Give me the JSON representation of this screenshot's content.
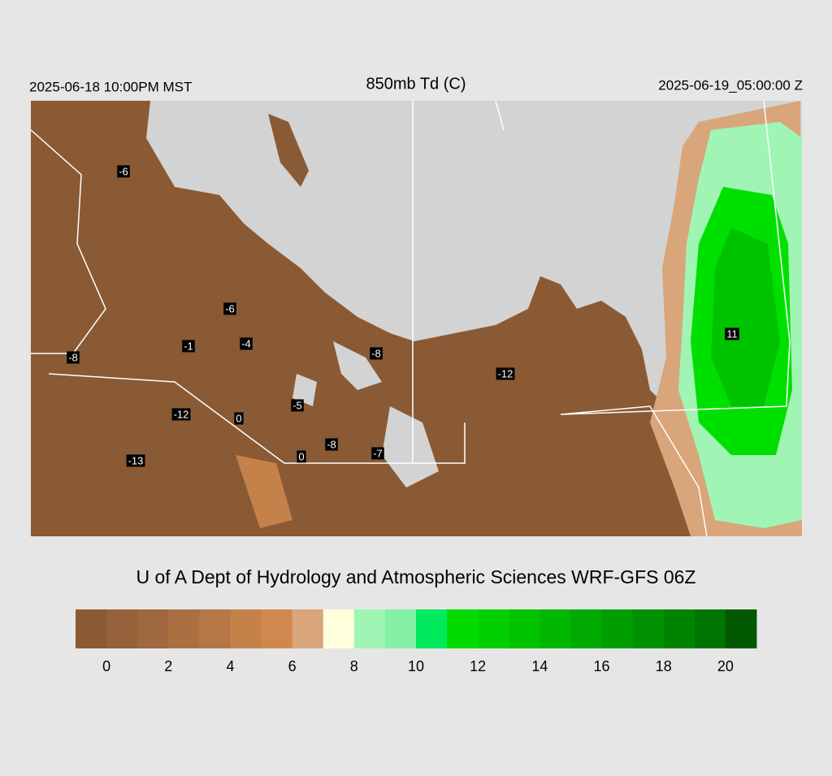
{
  "header": {
    "valid_local": "2025-06-18 10:00PM MST",
    "title": "850mb Td (C)",
    "valid_utc": "2025-06-19_05:00:00 Z"
  },
  "map": {
    "labels": [
      "-6",
      "-6",
      "-1",
      "-4",
      "-8",
      "-8",
      "-12",
      "0",
      "-5",
      "-8",
      "-7",
      "0",
      "-13",
      "-12",
      "11"
    ]
  },
  "credit": "U of A Dept of Hydrology and Atmospheric Sciences WRF-GFS 06Z",
  "colorbar": {
    "colors": [
      "#8a5a34",
      "#95613a",
      "#a0683e",
      "#ab7042",
      "#b67746",
      "#c4824a",
      "#d1884e",
      "#d8a67a",
      "#ffffdc",
      "#a0f5b4",
      "#84f0a4",
      "#00ea5e",
      "#00dc00",
      "#00cf00",
      "#00c300",
      "#00b600",
      "#00aa00",
      "#009e00",
      "#009100",
      "#008400",
      "#007400",
      "#005800"
    ],
    "ticks": [
      0,
      2,
      4,
      6,
      8,
      10,
      12,
      14,
      16,
      18,
      20
    ]
  }
}
